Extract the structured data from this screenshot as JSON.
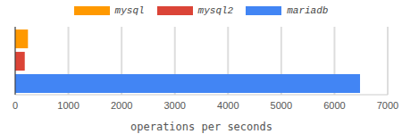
{
  "chart_data": {
    "type": "bar",
    "orientation": "horizontal",
    "categories": [
      null
    ],
    "series": [
      {
        "name": "mysql",
        "color": "#ff9900",
        "values": [
          240
        ]
      },
      {
        "name": "mysql2",
        "color": "#db4437",
        "values": [
          180
        ]
      },
      {
        "name": "mariadb",
        "color": "#4285f4",
        "values": [
          6480
        ]
      }
    ],
    "xlabel": "operations per seconds",
    "xlim": [
      0,
      7000
    ],
    "xticks": [
      0,
      1000,
      2000,
      3000,
      4000,
      5000,
      6000,
      7000
    ],
    "grid": true,
    "legend": "top",
    "tick_labels": "x"
  }
}
